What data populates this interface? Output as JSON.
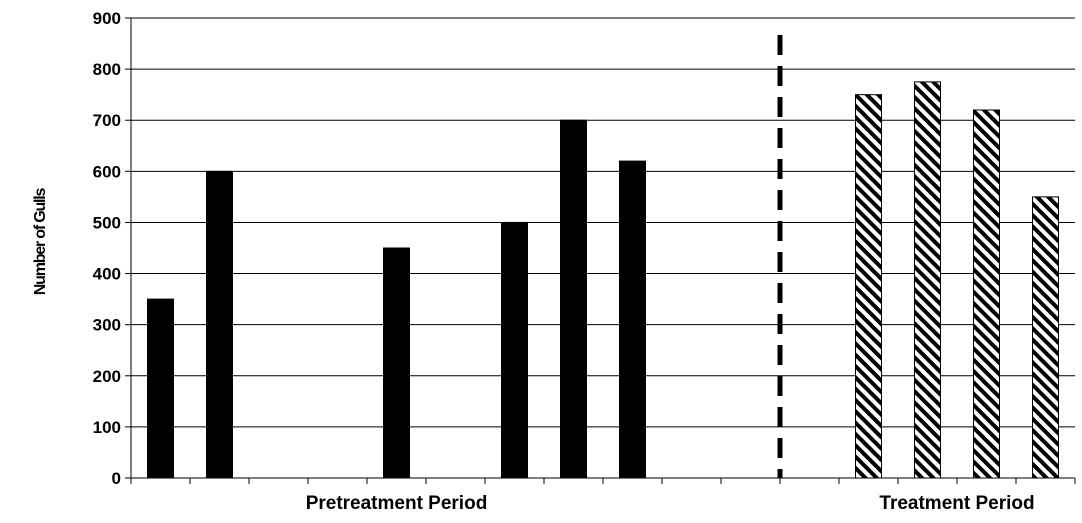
{
  "chart_data": {
    "type": "bar",
    "ylabel": "Number of Gulls",
    "ylim": [
      0,
      900
    ],
    "y_ticks": [
      0,
      100,
      200,
      300,
      400,
      500,
      600,
      700,
      800,
      900
    ],
    "grid": true,
    "slot_count": 16,
    "bars": [
      {
        "slot": 1,
        "value": 350,
        "period": "pretreatment"
      },
      {
        "slot": 2,
        "value": 600,
        "period": "pretreatment"
      },
      {
        "slot": 5,
        "value": 450,
        "period": "pretreatment"
      },
      {
        "slot": 7,
        "value": 500,
        "period": "pretreatment"
      },
      {
        "slot": 8,
        "value": 700,
        "period": "pretreatment"
      },
      {
        "slot": 9,
        "value": 620,
        "period": "pretreatment"
      },
      {
        "slot": 13,
        "value": 750,
        "period": "treatment"
      },
      {
        "slot": 14,
        "value": 775,
        "period": "treatment"
      },
      {
        "slot": 15,
        "value": 720,
        "period": "treatment"
      },
      {
        "slot": 16,
        "value": 550,
        "period": "treatment"
      }
    ],
    "divider_after_slot": 11,
    "period_labels": [
      {
        "id": "pretreatment",
        "label": "Pretreatment Period"
      },
      {
        "id": "treatment",
        "label": "Treatment Period"
      }
    ],
    "colors": {
      "pretreatment": "#000000",
      "treatment_hatch": "#000000",
      "treatment_background": "#ffffff",
      "grid": "#000000",
      "divider": "#000000"
    }
  }
}
